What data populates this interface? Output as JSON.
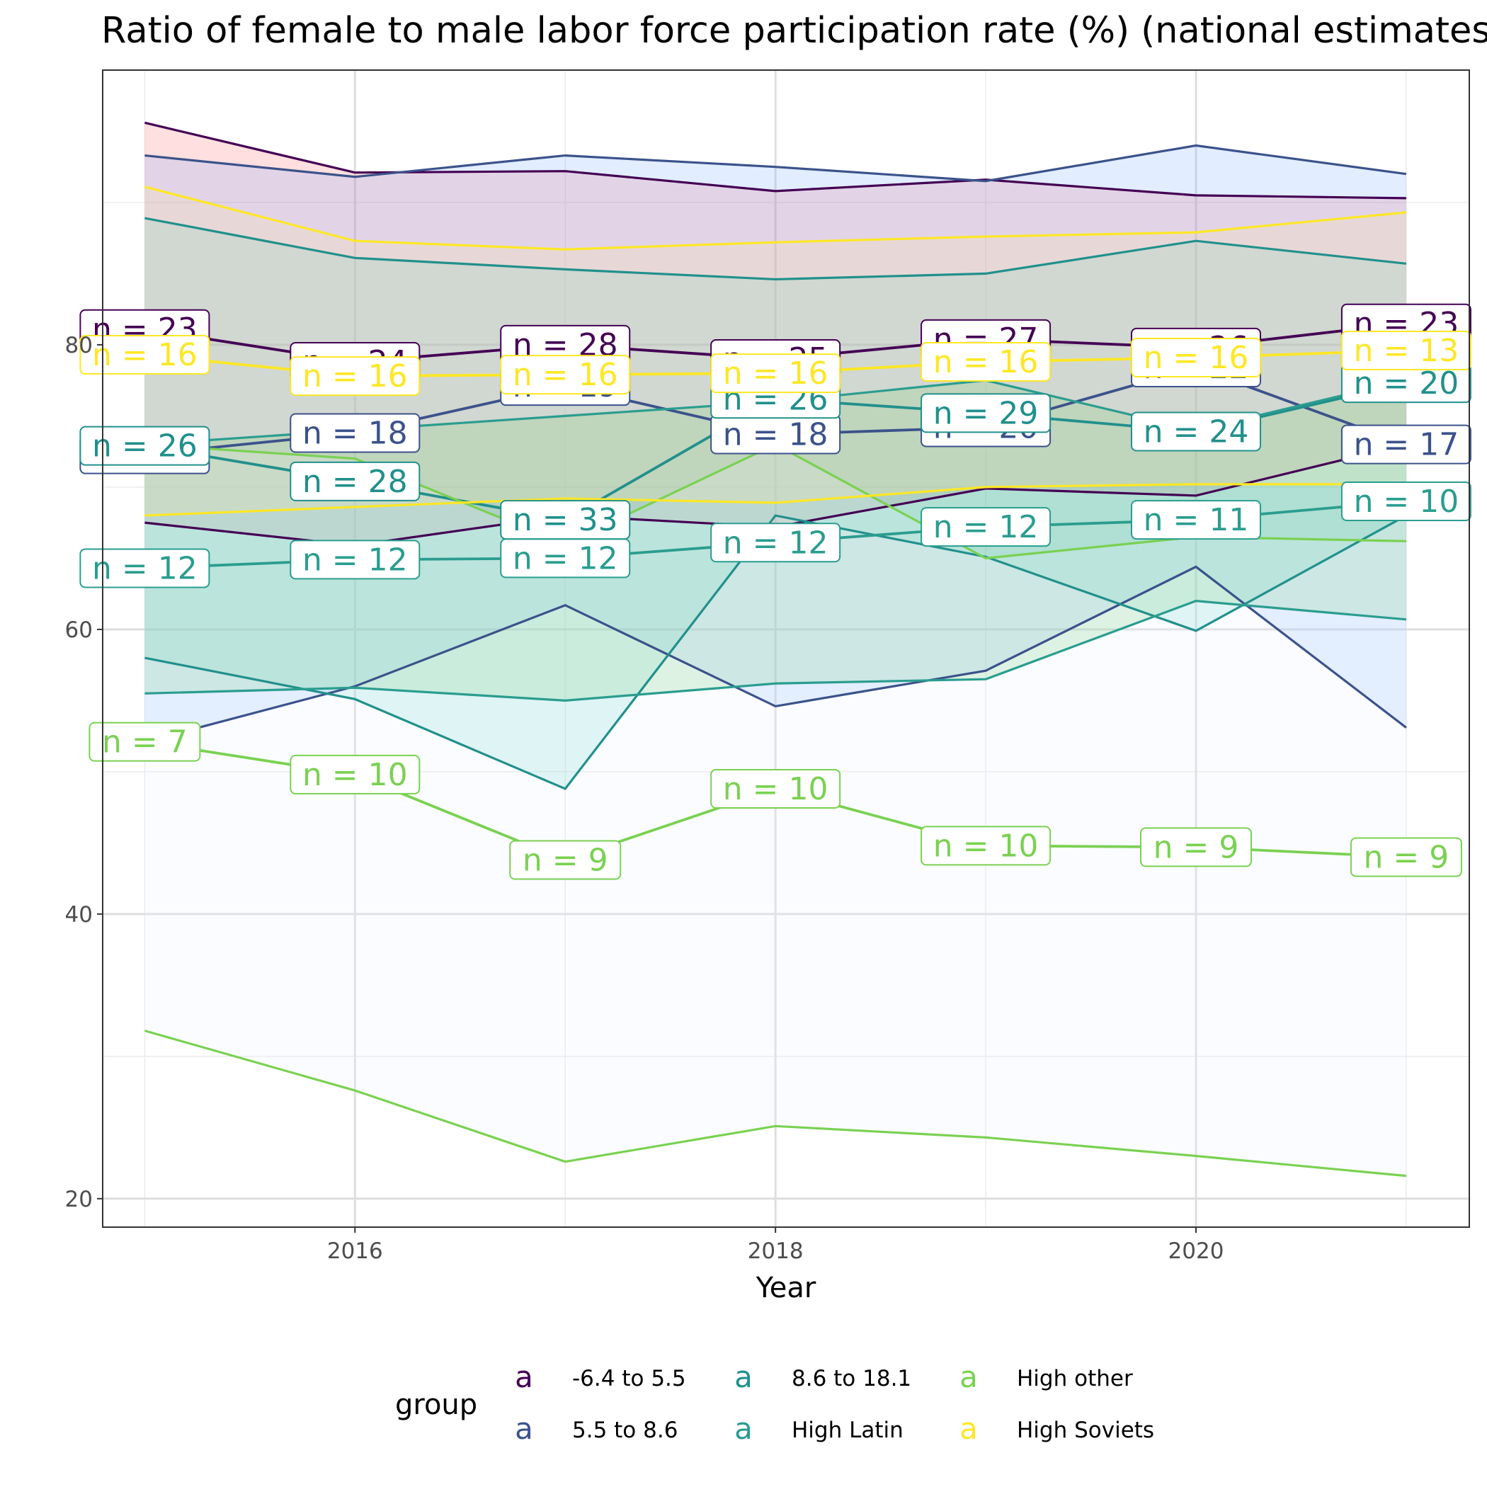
{
  "chart_data": {
    "type": "line",
    "title": "Ratio of female to male labor force participation rate (%) (national estimates)",
    "xlabel": "Year",
    "ylabel": "",
    "xlim": [
      2014.8,
      2021.3
    ],
    "ylim": [
      18,
      99.3
    ],
    "x_ticks": [
      2016,
      2018,
      2020
    ],
    "y_ticks": [
      20,
      40,
      60,
      80
    ],
    "grid": true,
    "legend_position": "bottom",
    "legend_title": "group",
    "legend_key_glyph": "a",
    "series": [
      {
        "name": "-6.4 to 5.5",
        "color": "#440154",
        "fill": "#ff6e6e",
        "x": [
          2015,
          2016,
          2017,
          2018,
          2019,
          2020,
          2021
        ],
        "mean": [
          81.1,
          78.8,
          80.0,
          79.0,
          80.4,
          79.8,
          81.5
        ],
        "n": [
          23,
          24,
          28,
          25,
          27,
          26,
          23
        ],
        "upper": [
          95.6,
          92.1,
          92.2,
          90.8,
          91.6,
          90.5,
          90.3
        ],
        "lower": [
          67.5,
          65.9,
          68.0,
          67.2,
          69.9,
          69.4,
          73.0
        ]
      },
      {
        "name": "5.5 to 8.6",
        "color": "#3b528b",
        "fill": "#7aaeff",
        "x": [
          2015,
          2016,
          2017,
          2018,
          2019,
          2020,
          2021
        ],
        "mean": [
          72.3,
          73.8,
          77.1,
          73.7,
          74.2,
          78.4,
          73.0
        ],
        "n": [
          21,
          18,
          19,
          18,
          20,
          22,
          17
        ],
        "upper": [
          93.3,
          91.8,
          93.3,
          92.5,
          91.5,
          94.0,
          92.0
        ],
        "lower": [
          52.1,
          56.0,
          61.7,
          54.6,
          57.1,
          64.4,
          53.1
        ]
      },
      {
        "name": "8.6 to 18.1",
        "color": "#21908c",
        "fill": "#66d3c4",
        "x": [
          2015,
          2016,
          2017,
          2018,
          2019,
          2020,
          2021
        ],
        "mean": [
          72.9,
          70.4,
          67.7,
          76.2,
          75.2,
          73.9,
          77.3
        ],
        "n": [
          26,
          28,
          33,
          26,
          29,
          24,
          20
        ],
        "upper": [
          88.9,
          86.1,
          85.3,
          84.6,
          85.0,
          87.3,
          85.7
        ],
        "lower": [
          58.0,
          55.1,
          48.8,
          68.0,
          65.1,
          59.9,
          68.0
        ]
      },
      {
        "name": "High Latin",
        "color": "#2a9d8f",
        "fill": "#5ec962",
        "x": [
          2015,
          2016,
          2017,
          2018,
          2019,
          2020,
          2021
        ],
        "mean": [
          64.3,
          64.9,
          65.0,
          66.1,
          67.2,
          67.7,
          69.0
        ],
        "n": [
          12,
          12,
          12,
          12,
          12,
          11,
          10
        ],
        "upper": [
          73.0,
          74.0,
          75.0,
          76.0,
          77.5,
          74.0,
          77.5
        ],
        "lower": [
          55.5,
          55.9,
          55.0,
          56.2,
          56.5,
          62.0,
          60.7
        ]
      },
      {
        "name": "High other",
        "color": "#7ad151",
        "fill": "#e8f3ff",
        "x": [
          2015,
          2016,
          2017,
          2018,
          2019,
          2020,
          2021
        ],
        "mean": [
          52.1,
          49.8,
          43.8,
          48.8,
          44.8,
          44.7,
          44.0
        ],
        "n": [
          7,
          10,
          9,
          10,
          10,
          9,
          9
        ],
        "upper": [
          73.0,
          72.0,
          66.0,
          73.0,
          65.0,
          66.5,
          66.2
        ],
        "lower": [
          31.8,
          27.6,
          22.6,
          25.1,
          24.3,
          23.0,
          21.6
        ]
      },
      {
        "name": "High Soviets",
        "color": "#fde725",
        "fill": "#fbe7a3",
        "x": [
          2015,
          2016,
          2017,
          2018,
          2019,
          2020,
          2021
        ],
        "mean": [
          79.3,
          77.8,
          77.9,
          78.0,
          78.8,
          79.1,
          79.6
        ],
        "n": [
          16,
          16,
          16,
          16,
          16,
          16,
          13
        ],
        "upper": [
          91.1,
          87.3,
          86.7,
          87.2,
          87.6,
          87.9,
          89.3
        ],
        "lower": [
          68.0,
          68.6,
          69.2,
          68.9,
          70.0,
          70.2,
          70.2
        ]
      }
    ]
  }
}
